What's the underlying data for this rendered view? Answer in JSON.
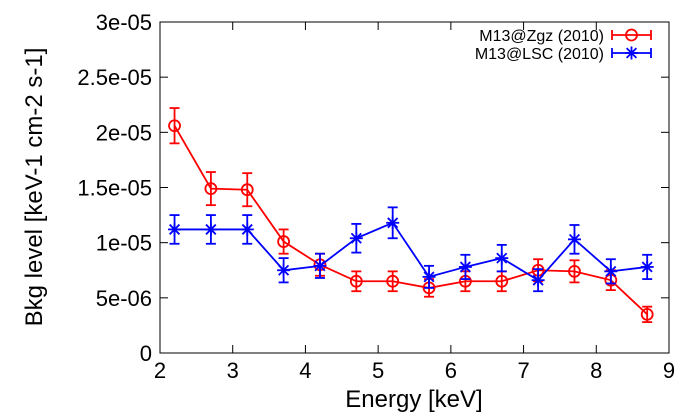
{
  "chart_data": {
    "type": "line",
    "title": "",
    "xlabel": "Energy [keV]",
    "ylabel": "Bkg level [keV-1 cm-2 s-1]",
    "xlim": [
      2,
      9
    ],
    "ylim": [
      0,
      3e-05
    ],
    "x_ticks": [
      2,
      3,
      4,
      5,
      6,
      7,
      8,
      9
    ],
    "x_tick_labels": [
      "2",
      "3",
      "4",
      "5",
      "6",
      "7",
      "8",
      "9"
    ],
    "y_ticks": [
      0,
      5e-06,
      1e-05,
      1.5e-05,
      2e-05,
      2.5e-05,
      3e-05
    ],
    "y_tick_labels": [
      "0",
      "5e-06",
      "1e-05",
      "1.5e-05",
      "2e-05",
      "2.5e-05",
      "3e-05"
    ],
    "grid": false,
    "legend_position": "top-right",
    "x": [
      2.2,
      2.7,
      3.2,
      3.7,
      4.2,
      4.7,
      5.2,
      5.7,
      6.2,
      6.7,
      7.2,
      7.7,
      8.2,
      8.7
    ],
    "series": [
      {
        "name": "M13@Zgz (2010)",
        "color": "#ff0000",
        "marker": "circle",
        "values": [
          2.06e-05,
          1.49e-05,
          1.48e-05,
          1.01e-05,
          8e-06,
          6.5e-06,
          6.5e-06,
          5.9e-06,
          6.5e-06,
          6.5e-06,
          7.5e-06,
          7.4e-06,
          6.6e-06,
          3.5e-06
        ],
        "errors": [
          1.6e-06,
          1.5e-06,
          1.5e-06,
          1.1e-06,
          1e-06,
          9e-07,
          9e-07,
          8e-07,
          9e-07,
          9e-07,
          1e-06,
          1e-06,
          9e-07,
          7e-07
        ]
      },
      {
        "name": "M13@LSC (2010)",
        "color": "#0000ff",
        "marker": "asterisk",
        "values": [
          1.12e-05,
          1.12e-05,
          1.12e-05,
          7.5e-06,
          7.9e-06,
          1.04e-05,
          1.18e-05,
          6.9e-06,
          7.8e-06,
          8.6e-06,
          6.6e-06,
          1.03e-05,
          7.4e-06,
          7.8e-06
        ],
        "errors": [
          1.3e-06,
          1.3e-06,
          1.3e-06,
          1.1e-06,
          1.1e-06,
          1.3e-06,
          1.4e-06,
          1e-06,
          1.1e-06,
          1.2e-06,
          1e-06,
          1.3e-06,
          1.1e-06,
          1.1e-06
        ]
      }
    ]
  }
}
